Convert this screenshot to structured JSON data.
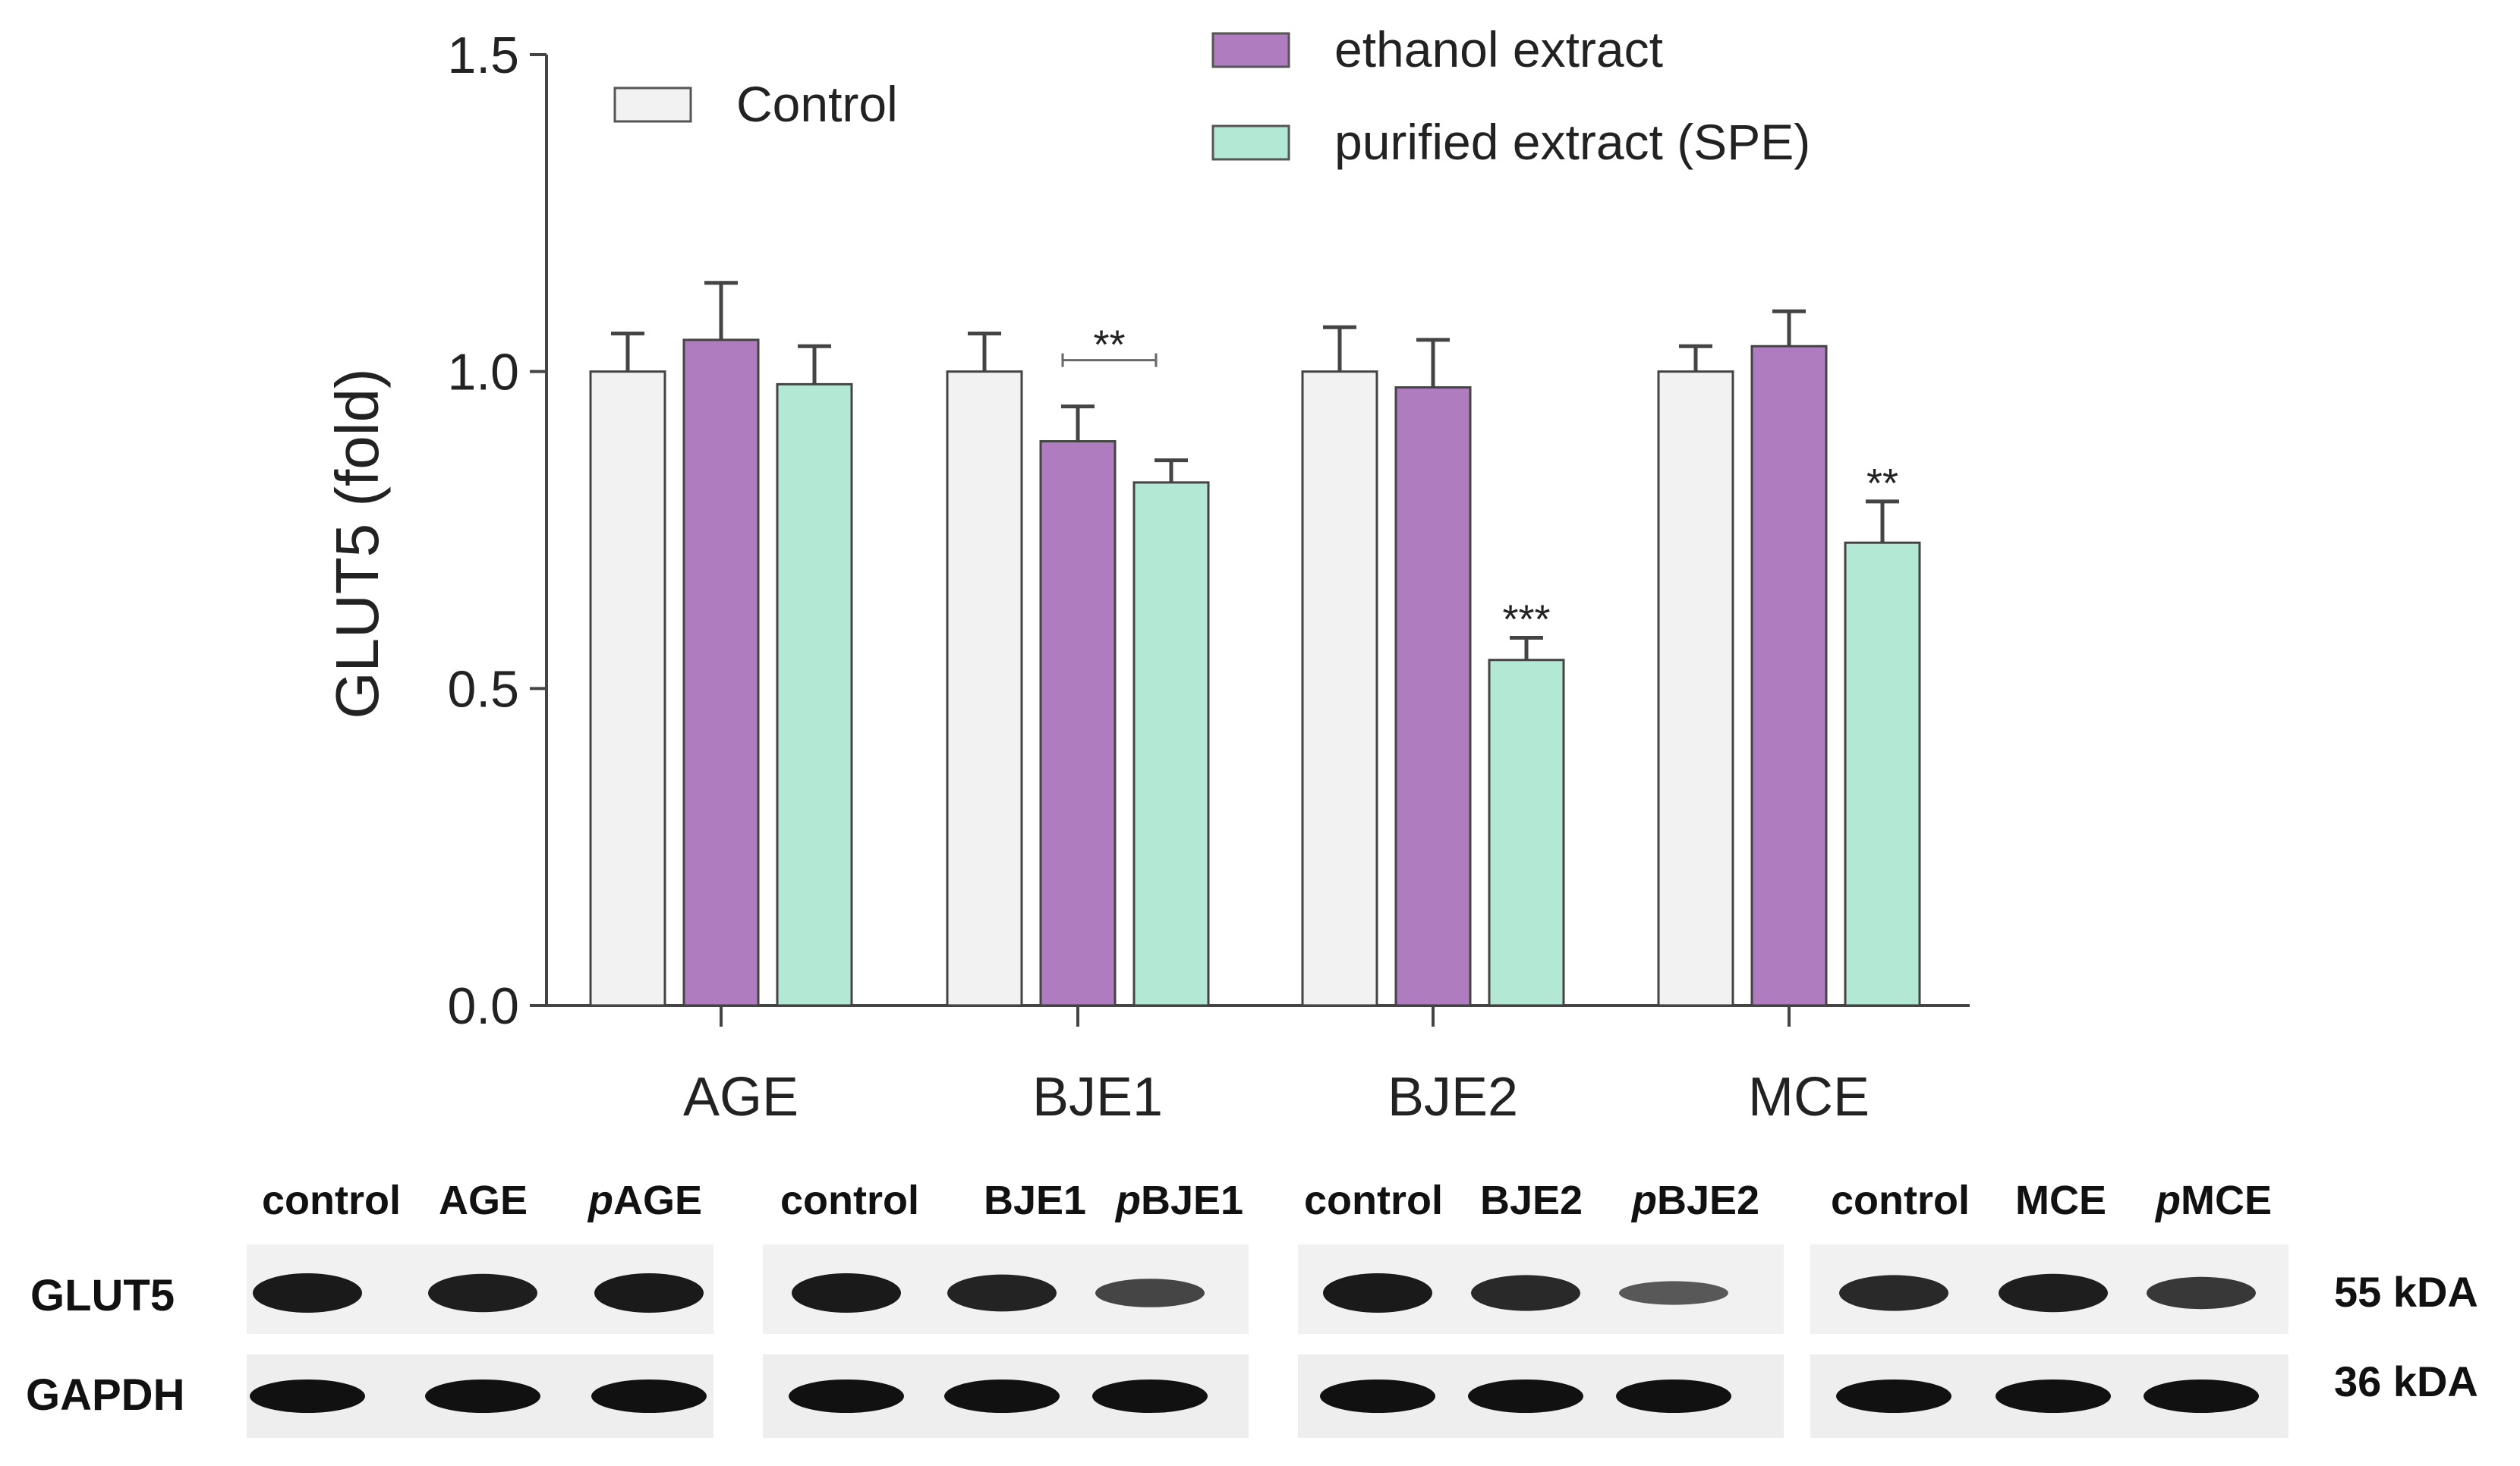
{
  "chart_data": {
    "type": "bar",
    "ylabel": "GLUT5 (fold)",
    "ylim": [
      0,
      1.5
    ],
    "yticks": [
      "0.0",
      "0.5",
      "1.0",
      "1.5"
    ],
    "categories": [
      "AGE",
      "BJE1",
      "BJE2",
      "MCE"
    ],
    "series": [
      {
        "name": "Control",
        "color": "#f2f2f2",
        "values": [
          1.0,
          1.0,
          1.0,
          1.0
        ],
        "errors": [
          0.06,
          0.06,
          0.07,
          0.04
        ]
      },
      {
        "name": "ethanol extract",
        "color": "#b07cc0",
        "values": [
          1.05,
          0.89,
          0.975,
          1.04
        ],
        "errors": [
          0.09,
          0.055,
          0.075,
          0.055
        ]
      },
      {
        "name": "purified extract (SPE)",
        "color": "#b3e8d5",
        "values": [
          0.98,
          0.825,
          0.545,
          0.73
        ],
        "errors": [
          0.06,
          0.035,
          0.035,
          0.065
        ]
      }
    ],
    "annotations": [
      {
        "text": "**",
        "category": 1,
        "type": "bracket",
        "from_series": 1,
        "to_series": 2,
        "y": 1.0
      },
      {
        "text": "***",
        "category": 2,
        "series": 2
      },
      {
        "text": "**",
        "category": 3,
        "series": 2
      }
    ],
    "grid": false,
    "legend": "top"
  },
  "blot": {
    "groups": [
      {
        "lanes": [
          "control",
          "AGE",
          "pAGE"
        ],
        "glut5": [
          1.0,
          0.95,
          1.0
        ],
        "gapdh": [
          1.0,
          1.0,
          1.0
        ]
      },
      {
        "lanes": [
          "control",
          "BJE1",
          "pBJE1"
        ],
        "glut5": [
          1.0,
          0.9,
          0.55
        ],
        "gapdh": [
          1.0,
          1.0,
          1.0
        ]
      },
      {
        "lanes": [
          "control",
          "BJE2",
          "pBJE2"
        ],
        "glut5": [
          1.0,
          0.85,
          0.35
        ],
        "gapdh": [
          1.0,
          1.0,
          1.0
        ]
      },
      {
        "lanes": [
          "control",
          "MCE",
          "pMCE"
        ],
        "glut5": [
          0.85,
          0.95,
          0.7
        ],
        "gapdh": [
          1.0,
          1.0,
          1.0
        ]
      }
    ],
    "row_labels": [
      "GLUT5",
      "GAPDH"
    ],
    "sizes": [
      "55 kDA",
      "36 kDA"
    ]
  }
}
